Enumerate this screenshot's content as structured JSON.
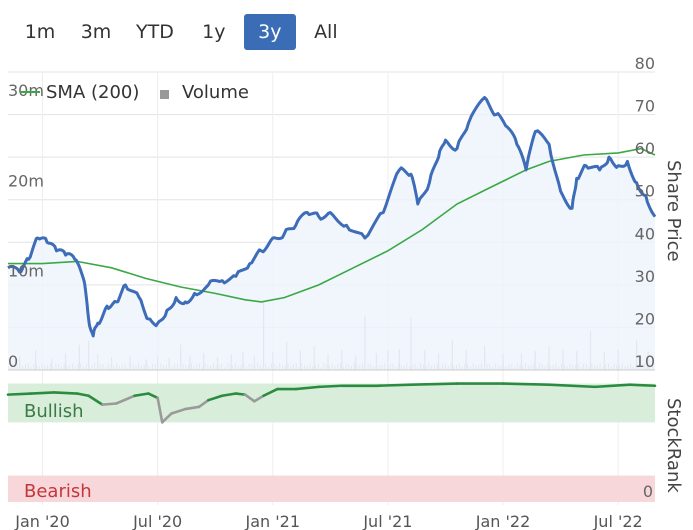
{
  "range_buttons": [
    "1m",
    "3m",
    "YTD",
    "1y",
    "3y",
    "All"
  ],
  "active_range": "3y",
  "legend": {
    "sma": "SMA (200)",
    "volume": "Volume"
  },
  "colors": {
    "price": "#3d6cb8",
    "sma": "#3aa845",
    "volume": "#b8b8bd",
    "rank_bull": "#2a8c3e",
    "rank_bear": "#9a9a9a",
    "bull_zone": "#d8eedb",
    "bear_zone": "#f8d7da",
    "active_button": "#3a6db5"
  },
  "chart_data": {
    "type": "line",
    "title": "",
    "x_labels": [
      "Jan '20",
      "Jul '20",
      "Jan '21",
      "Jul '21",
      "Jan '22",
      "Jul '22"
    ],
    "x_domain": [
      2019.85,
      2022.66
    ],
    "price_axis": {
      "label": "Share Price",
      "ticks": [
        10,
        20,
        30,
        40,
        50,
        60,
        70,
        80
      ],
      "ylim": [
        10,
        80
      ]
    },
    "volume_axis": {
      "ticks": [
        "0",
        "10m",
        "20m",
        "30m"
      ],
      "ylim": [
        0,
        33
      ]
    },
    "series": [
      {
        "name": "Share Price",
        "x": [
          2019.85,
          2019.9,
          2019.94,
          2019.98,
          2020.02,
          2020.06,
          2020.1,
          2020.14,
          2020.18,
          2020.2,
          2020.22,
          2020.24,
          2020.28,
          2020.32,
          2020.36,
          2020.42,
          2020.46,
          2020.5,
          2020.54,
          2020.58,
          2020.62,
          2020.66,
          2020.72,
          2020.78,
          2020.84,
          2020.9,
          2020.95,
          2021.0,
          2021.05,
          2021.1,
          2021.15,
          2021.2,
          2021.25,
          2021.32,
          2021.4,
          2021.48,
          2021.55,
          2021.6,
          2021.63,
          2021.68,
          2021.72,
          2021.75,
          2021.8,
          2021.85,
          2021.92,
          2021.97,
          2022.02,
          2022.06,
          2022.1,
          2022.14,
          2022.2,
          2022.25,
          2022.3,
          2022.32,
          2022.36,
          2022.42,
          2022.46,
          2022.5,
          2022.54,
          2022.58,
          2022.62,
          2022.66
        ],
        "values": [
          34,
          33,
          36,
          41,
          40,
          38,
          37,
          36,
          31,
          22,
          18,
          21,
          25,
          26,
          30,
          27,
          22,
          21,
          24,
          27,
          26,
          28,
          30,
          31,
          32,
          35,
          38,
          41,
          42,
          44,
          47,
          46,
          47,
          44,
          41,
          47,
          57,
          56,
          49,
          54,
          60,
          64,
          62,
          68,
          74,
          70,
          67,
          63,
          57,
          66,
          63,
          52,
          48,
          55,
          58,
          57,
          60,
          58,
          59,
          54,
          51,
          46
        ]
      },
      {
        "name": "SMA (200)",
        "x": [
          2019.85,
          2020.0,
          2020.15,
          2020.3,
          2020.45,
          2020.6,
          2020.75,
          2020.88,
          2020.95,
          2021.05,
          2021.2,
          2021.35,
          2021.5,
          2021.65,
          2021.8,
          2021.95,
          2022.1,
          2022.2,
          2022.35,
          2022.5,
          2022.6,
          2022.66
        ],
        "values": [
          35,
          35,
          35.5,
          34,
          31.5,
          29.5,
          28,
          26.5,
          26,
          27,
          30,
          34,
          38,
          43,
          49,
          53,
          57,
          59,
          60.5,
          61,
          62,
          60.5
        ]
      },
      {
        "name": "StockRank",
        "x": [
          2019.85,
          2019.95,
          2020.05,
          2020.15,
          2020.2,
          2020.26,
          2020.32,
          2020.4,
          2020.46,
          2020.5,
          2020.52,
          2020.56,
          2020.62,
          2020.68,
          2020.72,
          2020.78,
          2020.84,
          2020.88,
          2020.92,
          2020.96,
          2021.02,
          2021.1,
          2021.2,
          2021.3,
          2021.45,
          2021.6,
          2021.8,
          2022.0,
          2022.2,
          2022.4,
          2022.55,
          2022.66
        ],
        "values": [
          95,
          96,
          97,
          96,
          94,
          86,
          87,
          94,
          96,
          92,
          70,
          78,
          82,
          84,
          90,
          94,
          96,
          95,
          89,
          94,
          100,
          100,
          102,
          103,
          103,
          104,
          105,
          105,
          104,
          102,
          104,
          103
        ]
      }
    ],
    "volume_bars": [
      [
        2019.9,
        1.5
      ],
      [
        2019.97,
        2.2
      ],
      [
        2020.04,
        1.2
      ],
      [
        2020.1,
        1.8
      ],
      [
        2020.16,
        2.8
      ],
      [
        2020.2,
        3.2
      ],
      [
        2020.24,
        1.8
      ],
      [
        2020.3,
        1.4
      ],
      [
        2020.38,
        1.6
      ],
      [
        2020.45,
        1.2
      ],
      [
        2020.5,
        1.5
      ],
      [
        2020.55,
        1.3
      ],
      [
        2020.6,
        2.8
      ],
      [
        2020.64,
        1.6
      ],
      [
        2020.7,
        1.9
      ],
      [
        2020.76,
        1.4
      ],
      [
        2020.82,
        1.7
      ],
      [
        2020.87,
        2.0
      ],
      [
        2020.92,
        1.5
      ],
      [
        2020.96,
        7.5
      ],
      [
        2021.0,
        2.0
      ],
      [
        2021.06,
        3.1
      ],
      [
        2021.12,
        2.2
      ],
      [
        2021.18,
        2.6
      ],
      [
        2021.24,
        1.8
      ],
      [
        2021.3,
        2.2
      ],
      [
        2021.36,
        1.6
      ],
      [
        2021.4,
        6.0
      ],
      [
        2021.45,
        1.9
      ],
      [
        2021.5,
        2.2
      ],
      [
        2021.55,
        2.3
      ],
      [
        2021.6,
        5.8
      ],
      [
        2021.66,
        2.2
      ],
      [
        2021.72,
        1.9
      ],
      [
        2021.78,
        3.3
      ],
      [
        2021.84,
        2.2
      ],
      [
        2021.92,
        2.7
      ],
      [
        2022.0,
        1.8
      ],
      [
        2022.08,
        1.9
      ],
      [
        2022.14,
        2.1
      ],
      [
        2022.2,
        2.6
      ],
      [
        2022.26,
        2.3
      ],
      [
        2022.32,
        2.1
      ],
      [
        2022.38,
        4.3
      ],
      [
        2022.44,
        2.0
      ],
      [
        2022.5,
        2.2
      ],
      [
        2022.58,
        3.3
      ],
      [
        2022.63,
        2.1
      ]
    ],
    "rank_panel": {
      "ylabel": "StockRank",
      "bullish_label": "Bullish",
      "bearish_label": "Bearish",
      "zero_label": "0",
      "bull_threshold": 70
    }
  }
}
